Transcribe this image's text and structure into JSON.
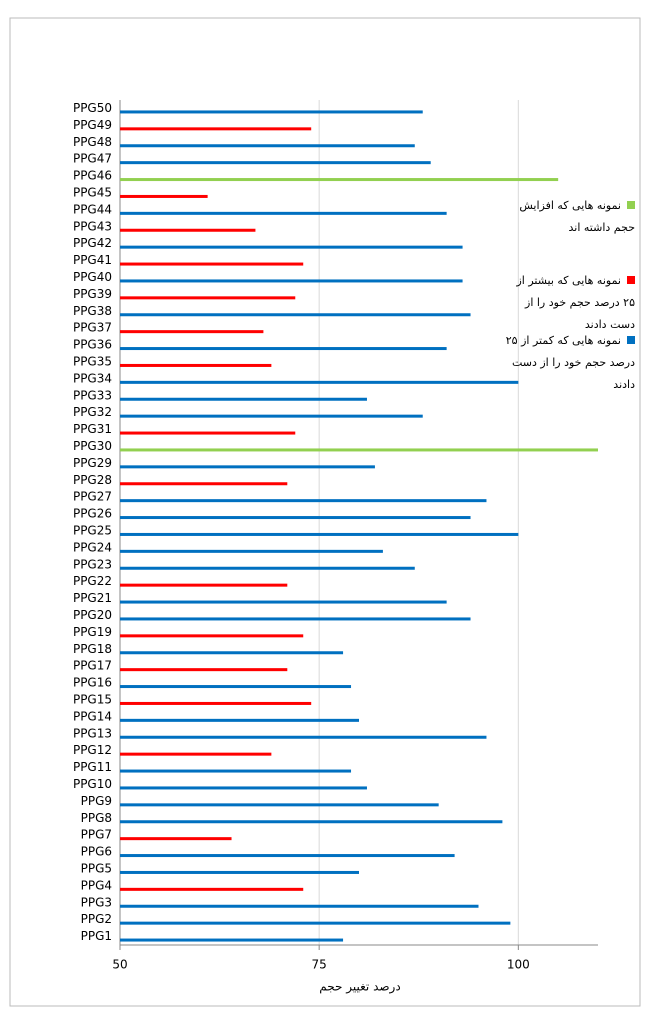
{
  "chart_data": {
    "type": "bar",
    "orientation": "horizontal",
    "x_label": "درصد تغییر حجم",
    "categories": [
      "PPG1",
      "PPG2",
      "PPG3",
      "PPG4",
      "PPG5",
      "PPG6",
      "PPG7",
      "PPG8",
      "PPG9",
      "PPG10",
      "PPG11",
      "PPG12",
      "PPG13",
      "PPG14",
      "PPG15",
      "PPG16",
      "PPG17",
      "PPG18",
      "PPG19",
      "PPG20",
      "PPG21",
      "PPG22",
      "PPG23",
      "PPG24",
      "PPG25",
      "PPG26",
      "PPG27",
      "PPG28",
      "PPG29",
      "PPG30",
      "PPG31",
      "PPG32",
      "PPG33",
      "PPG34",
      "PPG35",
      "PPG36",
      "PPG37",
      "PPG38",
      "PPG39",
      "PPG40",
      "PPG41",
      "PPG42",
      "PPG43",
      "PPG44",
      "PPG45",
      "PPG46",
      "PPG47",
      "PPG48",
      "PPG49",
      "PPG50"
    ],
    "series": [
      {
        "name": "نمونه هایی که افزایش حجم داشته اند",
        "color": "#92d050",
        "values": [
          null,
          null,
          null,
          null,
          null,
          null,
          null,
          null,
          null,
          null,
          null,
          null,
          null,
          null,
          null,
          null,
          null,
          null,
          null,
          null,
          null,
          null,
          null,
          null,
          null,
          null,
          null,
          null,
          null,
          110,
          null,
          null,
          null,
          null,
          null,
          null,
          null,
          null,
          null,
          null,
          null,
          null,
          null,
          null,
          null,
          105,
          null,
          null,
          null,
          null
        ]
      },
      {
        "name": "نمونه هایی که بیشتر از ۲۵ درصد حجم خود را از دست دادند",
        "color": "#ff0000",
        "values": [
          null,
          null,
          null,
          73,
          null,
          null,
          64,
          null,
          null,
          null,
          null,
          69,
          null,
          null,
          74,
          null,
          71,
          null,
          73,
          null,
          null,
          71,
          null,
          null,
          null,
          null,
          null,
          71,
          null,
          null,
          72,
          null,
          null,
          null,
          69,
          null,
          68,
          null,
          72,
          null,
          73,
          null,
          67,
          null,
          61,
          null,
          null,
          null,
          74,
          null
        ]
      },
      {
        "name": "نمونه هایی که کمتر از ۲۵ درصد حجم خود را از دست دادند",
        "color": "#0070c0",
        "values": [
          78,
          99,
          95,
          null,
          80,
          92,
          null,
          98,
          90,
          81,
          79,
          null,
          96,
          80,
          null,
          79,
          null,
          78,
          null,
          94,
          91,
          null,
          87,
          83,
          100,
          94,
          96,
          null,
          82,
          null,
          null,
          88,
          81,
          100,
          null,
          91,
          null,
          94,
          null,
          93,
          null,
          93,
          null,
          91,
          null,
          null,
          89,
          87,
          null,
          88
        ]
      }
    ],
    "xlim": [
      50,
      110
    ],
    "xticks": [
      50,
      75,
      100
    ],
    "grid": true
  }
}
